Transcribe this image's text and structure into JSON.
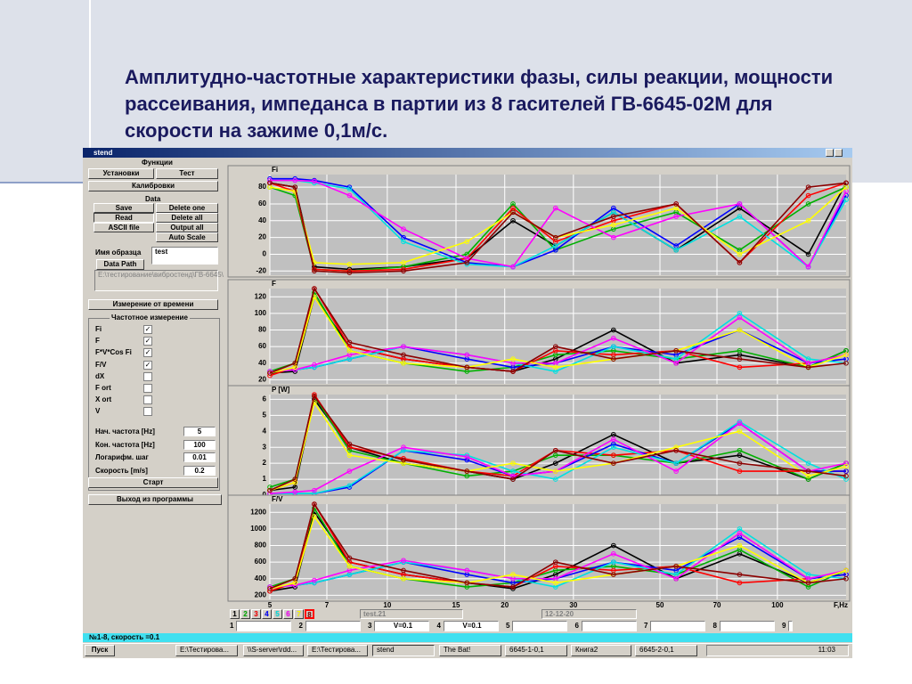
{
  "slide_title": "Амплитудно-частотные характеристики фазы, силы реакции, мощности рассеивания, импеданса в партии из 8 гасителей ГВ-6645-02М для скорости на зажиме 0,1м/с.",
  "window": {
    "title": "stend"
  },
  "panel": {
    "functions_label": "Функции",
    "functions": [
      "Установки",
      "Тест",
      "Калибровки"
    ],
    "data_label": "Data",
    "data_buttons": [
      "Save",
      "Delete one",
      "Read",
      "Delete all",
      "ASCII file",
      "Output all",
      "Auto Scale"
    ],
    "sample_name_label": "Имя образца",
    "sample_name": "test",
    "data_path_button": "Data Path",
    "data_path": "E:\\тестирование\\вибростенд\\ГВ-6645\\",
    "time_button": "Измерение от времени",
    "freq_group": "Частотное измерение",
    "checks": [
      {
        "label": "Fi",
        "checked": true
      },
      {
        "label": "F",
        "checked": true
      },
      {
        "label": "F*V*Cos Fi",
        "checked": true
      },
      {
        "label": "F/V",
        "checked": true
      },
      {
        "label": "dX",
        "checked": false
      },
      {
        "label": "F ort",
        "checked": false
      },
      {
        "label": "X ort",
        "checked": false
      },
      {
        "label": "V",
        "checked": false
      }
    ],
    "params": [
      {
        "label": "Нач. частота [Hz]",
        "value": "5"
      },
      {
        "label": "Кон. частота [Hz]",
        "value": "100"
      },
      {
        "label": "Логарифм. шаг",
        "value": "0.01"
      },
      {
        "label": "Скорость [m/s]",
        "value": "0.2"
      }
    ],
    "start_button": "Старт",
    "exit_button": "Выход из программы"
  },
  "chart_data": [
    {
      "type": "line",
      "title": "Fi",
      "log_x": true,
      "grid": true,
      "x": [
        5,
        5.8,
        6.5,
        8,
        11,
        16,
        21,
        27,
        38,
        55,
        80,
        120,
        150
      ],
      "xlim": [
        5,
        150
      ],
      "xticks": [
        5,
        7,
        10,
        15,
        20,
        30,
        50,
        70,
        100
      ],
      "ylim": [
        -25,
        95
      ],
      "yticks": [
        -20,
        0,
        20,
        40,
        60,
        80
      ],
      "series": [
        {
          "name": "1",
          "color": "#000000",
          "values": [
            85,
            80,
            -15,
            -18,
            -15,
            -5,
            40,
            10,
            50,
            5,
            55,
            0,
            85
          ]
        },
        {
          "name": "2",
          "color": "#00b000",
          "values": [
            80,
            70,
            -18,
            -20,
            -15,
            0,
            60,
            5,
            30,
            50,
            5,
            60,
            80
          ]
        },
        {
          "name": "3",
          "color": "#ff0000",
          "values": [
            85,
            75,
            -18,
            -20,
            -18,
            -5,
            55,
            15,
            40,
            60,
            -10,
            70,
            85
          ]
        },
        {
          "name": "4",
          "color": "#0000ff",
          "values": [
            90,
            90,
            88,
            80,
            20,
            -10,
            -15,
            5,
            55,
            10,
            60,
            -15,
            70
          ]
        },
        {
          "name": "5",
          "color": "#00e0e0",
          "values": [
            88,
            88,
            85,
            78,
            15,
            -12,
            -15,
            10,
            50,
            5,
            45,
            -15,
            65
          ]
        },
        {
          "name": "6",
          "color": "#ff00ff",
          "values": [
            88,
            88,
            87,
            70,
            30,
            -5,
            -15,
            55,
            20,
            45,
            60,
            -15,
            75
          ]
        },
        {
          "name": "7",
          "color": "#ffff00",
          "values": [
            80,
            75,
            -10,
            -12,
            -10,
            15,
            50,
            20,
            35,
            55,
            0,
            40,
            80
          ]
        },
        {
          "name": "8",
          "color": "#8b0000",
          "values": [
            85,
            80,
            -20,
            -22,
            -20,
            -10,
            50,
            20,
            45,
            60,
            -10,
            80,
            85
          ]
        }
      ]
    },
    {
      "type": "line",
      "title": "F",
      "log_x": true,
      "grid": true,
      "x": [
        5,
        5.8,
        6.5,
        8,
        11,
        16,
        21,
        27,
        38,
        55,
        80,
        120,
        150
      ],
      "xlim": [
        5,
        150
      ],
      "xticks": [
        5,
        7,
        10,
        15,
        20,
        30,
        50,
        70,
        100
      ],
      "ylim": [
        15,
        130
      ],
      "yticks": [
        20,
        40,
        60,
        80,
        100,
        120
      ],
      "series": [
        {
          "color": "#000000",
          "values": [
            28,
            30,
            120,
            60,
            45,
            35,
            30,
            45,
            80,
            40,
            50,
            35,
            55
          ]
        },
        {
          "color": "#00b000",
          "values": [
            30,
            40,
            125,
            55,
            40,
            30,
            35,
            50,
            55,
            45,
            55,
            35,
            55
          ]
        },
        {
          "color": "#ff0000",
          "values": [
            25,
            35,
            130,
            60,
            45,
            35,
            30,
            55,
            50,
            55,
            35,
            40,
            50
          ]
        },
        {
          "color": "#0000ff",
          "values": [
            30,
            32,
            35,
            45,
            60,
            45,
            35,
            40,
            60,
            50,
            80,
            40,
            45
          ]
        },
        {
          "color": "#00e0e0",
          "values": [
            30,
            32,
            35,
            45,
            60,
            50,
            40,
            30,
            60,
            45,
            100,
            45,
            40
          ]
        },
        {
          "color": "#ff00ff",
          "values": [
            30,
            32,
            38,
            50,
            60,
            50,
            40,
            40,
            70,
            40,
            95,
            40,
            50
          ]
        },
        {
          "color": "#ffff00",
          "values": [
            28,
            35,
            120,
            55,
            40,
            35,
            45,
            35,
            45,
            55,
            80,
            35,
            50
          ]
        },
        {
          "color": "#8b0000",
          "values": [
            28,
            40,
            130,
            65,
            50,
            35,
            30,
            60,
            45,
            55,
            45,
            35,
            40
          ]
        }
      ]
    },
    {
      "type": "line",
      "title": "P [W]",
      "log_x": true,
      "grid": true,
      "x": [
        5,
        5.8,
        6.5,
        8,
        11,
        16,
        21,
        27,
        38,
        55,
        80,
        120,
        150
      ],
      "xlim": [
        5,
        150
      ],
      "xticks": [
        5,
        7,
        10,
        15,
        20,
        30,
        50,
        70,
        100
      ],
      "ylim": [
        0,
        6.3
      ],
      "yticks": [
        0,
        1,
        2,
        3,
        4,
        5,
        6
      ],
      "series": [
        {
          "color": "#000000",
          "values": [
            0.3,
            0.5,
            6,
            3,
            2,
            1.5,
            1,
            2,
            3.8,
            2,
            2.5,
            1,
            2
          ]
        },
        {
          "color": "#00b000",
          "values": [
            0.5,
            1,
            6.2,
            2.8,
            2,
            1.2,
            1.5,
            2.5,
            2.5,
            2,
            2.8,
            1,
            2
          ]
        },
        {
          "color": "#ff0000",
          "values": [
            0.3,
            0.8,
            6.3,
            3,
            2.3,
            1.5,
            1.2,
            2.8,
            2.5,
            2.8,
            1.5,
            1.5,
            1.5
          ]
        },
        {
          "color": "#0000ff",
          "values": [
            0.1,
            0.1,
            0.1,
            0.5,
            2.8,
            2.2,
            1.2,
            1.5,
            3.2,
            2,
            4.5,
            1.5,
            1.5
          ]
        },
        {
          "color": "#00e0e0",
          "values": [
            0.1,
            0.1,
            0.1,
            0.6,
            2.8,
            2.5,
            1.5,
            1,
            3,
            2,
            4.6,
            2,
            1
          ]
        },
        {
          "color": "#ff00ff",
          "values": [
            0.1,
            0.2,
            0.3,
            1.5,
            3,
            2.4,
            1.2,
            1.5,
            3.5,
            1.5,
            4.5,
            1.5,
            2
          ]
        },
        {
          "color": "#ffff00",
          "values": [
            0.3,
            0.8,
            5.8,
            2.5,
            2,
            1.5,
            2,
            1.5,
            2,
            3,
            4,
            1.2,
            1.8
          ]
        },
        {
          "color": "#8b0000",
          "values": [
            0.3,
            1,
            6.2,
            3.2,
            2.2,
            1.5,
            1,
            2.8,
            2,
            2.8,
            2,
            1.5,
            1.2
          ]
        }
      ]
    },
    {
      "type": "line",
      "title": "F/V",
      "log_x": true,
      "grid": true,
      "x_label": "F,Hz",
      "x": [
        5,
        5.8,
        6.5,
        8,
        11,
        16,
        21,
        27,
        38,
        55,
        80,
        120,
        150
      ],
      "xlim": [
        5,
        150
      ],
      "xticks": [
        5,
        7,
        10,
        15,
        20,
        30,
        50,
        70,
        100
      ],
      "ylim": [
        150,
        1300
      ],
      "yticks": [
        200,
        400,
        600,
        800,
        1000,
        1200
      ],
      "series": [
        {
          "color": "#000000",
          "values": [
            250,
            300,
            1200,
            600,
            450,
            350,
            280,
            450,
            800,
            400,
            700,
            350,
            500
          ]
        },
        {
          "color": "#00b000",
          "values": [
            300,
            400,
            1250,
            550,
            400,
            300,
            350,
            500,
            550,
            450,
            750,
            300,
            500
          ]
        },
        {
          "color": "#ff0000",
          "values": [
            250,
            350,
            1300,
            600,
            450,
            350,
            300,
            550,
            500,
            550,
            350,
            400,
            450
          ]
        },
        {
          "color": "#0000ff",
          "values": [
            300,
            320,
            350,
            450,
            600,
            450,
            350,
            400,
            600,
            500,
            900,
            400,
            450
          ]
        },
        {
          "color": "#00e0e0",
          "values": [
            300,
            320,
            350,
            450,
            600,
            500,
            400,
            300,
            600,
            450,
            1000,
            450,
            400
          ]
        },
        {
          "color": "#ff00ff",
          "values": [
            300,
            320,
            380,
            500,
            620,
            500,
            400,
            400,
            700,
            400,
            950,
            400,
            500
          ]
        },
        {
          "color": "#ffff00",
          "values": [
            280,
            350,
            1150,
            550,
            400,
            350,
            450,
            350,
            450,
            550,
            800,
            350,
            500
          ]
        },
        {
          "color": "#8b0000",
          "values": [
            280,
            400,
            1300,
            650,
            500,
            350,
            300,
            600,
            450,
            550,
            450,
            350,
            400
          ]
        }
      ]
    }
  ],
  "bottom": {
    "file_name": "test.21",
    "date": "12-12-20",
    "fields": [
      {
        "label": "1"
      },
      {
        "label": "2"
      },
      {
        "label": "3",
        "value": "V=0.1"
      },
      {
        "label": "4",
        "value": "V=0.1"
      },
      {
        "label": "5"
      },
      {
        "label": "6"
      },
      {
        "label": "7"
      },
      {
        "label": "8"
      },
      {
        "label": "9"
      }
    ]
  },
  "status": "№1-8, скорость =0.1",
  "taskbar": {
    "start": "Пуск",
    "items": [
      "E:\\Тестирова...",
      "\\\\S-server\\rdd...",
      "E:\\Тестирова...",
      "stend",
      "The Bat!",
      "6645-1-0,1",
      "Книга2",
      "6645-2-0,1"
    ],
    "clock": "11:03"
  }
}
